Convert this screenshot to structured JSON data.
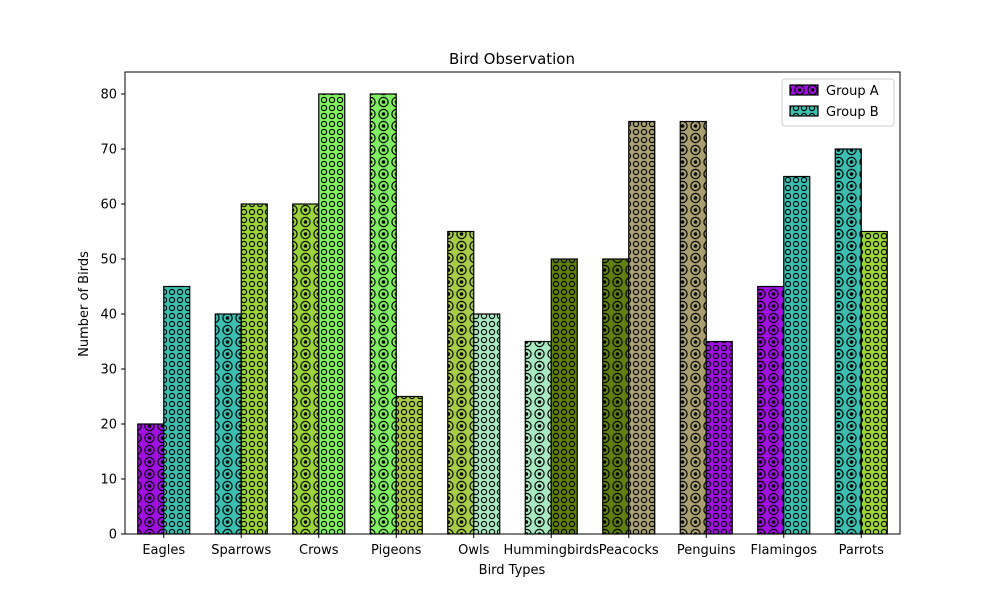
{
  "chart_data": {
    "type": "bar",
    "title": "Bird Observation",
    "xlabel": "Bird Types",
    "ylabel": "Number of Birds",
    "ylim": [
      0,
      84
    ],
    "yticks": [
      0,
      10,
      20,
      30,
      40,
      50,
      60,
      70,
      80
    ],
    "grid": false,
    "legend_position": "top-right",
    "categories": [
      "Eagles",
      "Sparrows",
      "Crows",
      "Pigeons",
      "Owls",
      "Hummingbirds",
      "Peacocks",
      "Penguins",
      "Flamingos",
      "Parrots"
    ],
    "series": [
      {
        "name": "Group A",
        "values": [
          20,
          40,
          60,
          80,
          55,
          35,
          50,
          75,
          45,
          70
        ],
        "colors": [
          "#a010e0",
          "#3cbfb0",
          "#9ad43a",
          "#80f060",
          "#a8cc48",
          "#a8e8c0",
          "#5e7e10",
          "#a8a070",
          "#a010e0",
          "#3cbfb0"
        ],
        "legend_color": "#a010e0",
        "pattern": "rings"
      },
      {
        "name": "Group B",
        "values": [
          45,
          60,
          80,
          25,
          40,
          50,
          75,
          35,
          65,
          55
        ],
        "colors": [
          "#3cbfb0",
          "#9ad43a",
          "#80f060",
          "#a8cc48",
          "#a8e8c0",
          "#5e7e10",
          "#a8a070",
          "#a010e0",
          "#3cbfb0",
          "#9ad43a"
        ],
        "legend_color": "#3cbfb0",
        "pattern": "small-rings"
      }
    ]
  }
}
